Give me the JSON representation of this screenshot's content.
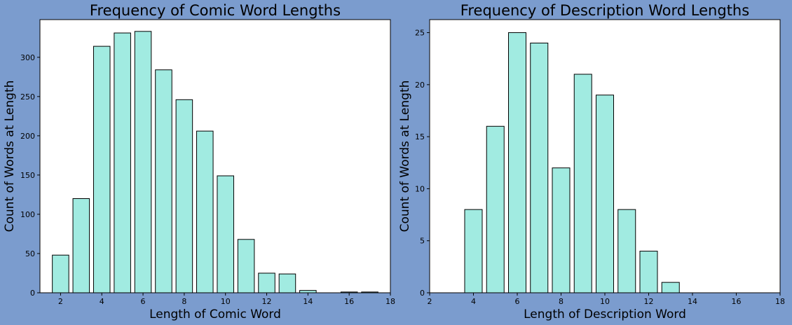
{
  "figure_background": "#7b9cce",
  "bar_color": "#a1ebe1",
  "chart_data": [
    {
      "type": "bar",
      "title": "Frequency of Comic Word Lengths",
      "xlabel": "Length of Comic Word",
      "ylabel": "Count of Words at Length",
      "x": [
        2,
        3,
        4,
        5,
        6,
        7,
        8,
        9,
        10,
        11,
        12,
        13,
        14,
        16,
        17
      ],
      "values": [
        48,
        120,
        314,
        331,
        333,
        284,
        246,
        206,
        149,
        68,
        25,
        24,
        3,
        1,
        1
      ],
      "xlim": [
        1,
        18
      ],
      "ylim": [
        0,
        348
      ],
      "xticks": [
        "2",
        "4",
        "6",
        "8",
        "10",
        "12",
        "14",
        "16",
        "18"
      ],
      "yticks": [
        "0",
        "50",
        "100",
        "150",
        "200",
        "250",
        "300"
      ],
      "grid": false
    },
    {
      "type": "bar",
      "title": "Frequency of Description Word Lengths",
      "xlabel": "Length of Description Word",
      "ylabel": "Count of Words at Length",
      "x": [
        4,
        5,
        6,
        7,
        8,
        9,
        10,
        11,
        12,
        13
      ],
      "values": [
        8,
        16,
        25,
        24,
        12,
        21,
        19,
        8,
        4,
        1
      ],
      "xlim": [
        2,
        18
      ],
      "ylim": [
        0,
        26.25
      ],
      "xticks": [
        "2",
        "4",
        "6",
        "8",
        "10",
        "12",
        "14",
        "16",
        "18"
      ],
      "yticks": [
        "0",
        "5",
        "10",
        "15",
        "20",
        "25"
      ],
      "grid": false
    }
  ]
}
